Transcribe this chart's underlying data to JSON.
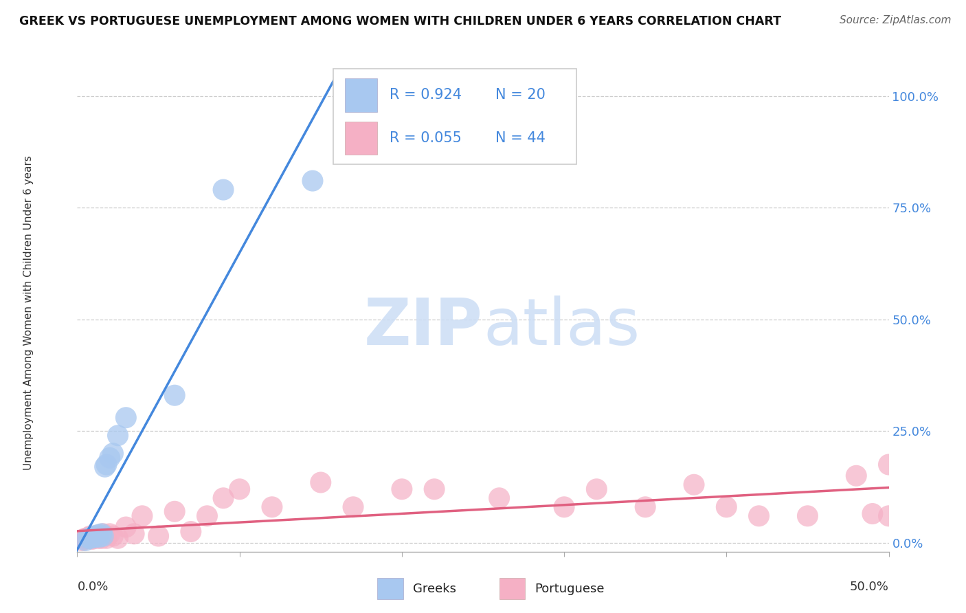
{
  "title": "GREEK VS PORTUGUESE UNEMPLOYMENT AMONG WOMEN WITH CHILDREN UNDER 6 YEARS CORRELATION CHART",
  "source": "Source: ZipAtlas.com",
  "ylabel": "Unemployment Among Women with Children Under 6 years",
  "watermark_zip": "ZIP",
  "watermark_atlas": "atlas",
  "legend_greek_R": "R = 0.924",
  "legend_greek_N": "N = 20",
  "legend_port_R": "R = 0.055",
  "legend_port_N": "N = 44",
  "greek_color": "#a8c8f0",
  "greek_line_color": "#4488dd",
  "port_color": "#f5b0c5",
  "port_line_color": "#e06080",
  "greek_x": [
    0.005,
    0.007,
    0.008,
    0.009,
    0.01,
    0.011,
    0.012,
    0.013,
    0.014,
    0.015,
    0.016,
    0.017,
    0.018,
    0.02,
    0.022,
    0.025,
    0.03,
    0.06,
    0.09,
    0.145
  ],
  "greek_y": [
    0.005,
    0.01,
    0.01,
    0.012,
    0.015,
    0.012,
    0.015,
    0.018,
    0.013,
    0.02,
    0.015,
    0.17,
    0.175,
    0.19,
    0.2,
    0.24,
    0.28,
    0.33,
    0.79,
    0.81
  ],
  "port_x": [
    0.003,
    0.004,
    0.005,
    0.006,
    0.007,
    0.008,
    0.009,
    0.01,
    0.011,
    0.012,
    0.013,
    0.014,
    0.015,
    0.016,
    0.018,
    0.02,
    0.022,
    0.025,
    0.03,
    0.035,
    0.04,
    0.05,
    0.06,
    0.07,
    0.08,
    0.09,
    0.1,
    0.12,
    0.15,
    0.17,
    0.2,
    0.22,
    0.26,
    0.3,
    0.32,
    0.35,
    0.38,
    0.4,
    0.42,
    0.45,
    0.48,
    0.49,
    0.5,
    0.5
  ],
  "port_y": [
    0.005,
    0.008,
    0.01,
    0.01,
    0.012,
    0.015,
    0.008,
    0.01,
    0.015,
    0.012,
    0.01,
    0.015,
    0.01,
    0.02,
    0.01,
    0.02,
    0.015,
    0.01,
    0.035,
    0.02,
    0.06,
    0.015,
    0.07,
    0.025,
    0.06,
    0.1,
    0.12,
    0.08,
    0.135,
    0.08,
    0.12,
    0.12,
    0.1,
    0.08,
    0.12,
    0.08,
    0.13,
    0.08,
    0.06,
    0.06,
    0.15,
    0.065,
    0.175,
    0.06
  ],
  "xlim": [
    0.0,
    0.5
  ],
  "ylim": [
    -0.02,
    1.05
  ],
  "yticks": [
    0.0,
    0.25,
    0.5,
    0.75,
    1.0
  ],
  "ytick_labels": [
    "0.0%",
    "25.0%",
    "50.0%",
    "75.0%",
    "100.0%"
  ],
  "background_color": "#ffffff",
  "grid_color": "#cccccc",
  "right_axis_color": "#4488dd",
  "text_color": "#333333"
}
